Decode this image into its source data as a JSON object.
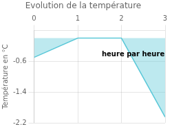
{
  "chart_data": {
    "type": "area",
    "title": "Evolution de la température",
    "ylabel": "Température en °C",
    "x": [
      0,
      1,
      2,
      3
    ],
    "values": [
      -0.5,
      0.0,
      0.0,
      -2.05
    ],
    "color": "#5bc8d8",
    "xlim": [
      0,
      3
    ],
    "ylim": [
      -2.2,
      0.2
    ],
    "xticks": [
      0,
      1,
      2,
      3
    ],
    "yticks": [
      -0.6,
      -1.4,
      -2.2
    ],
    "grid": true,
    "annotations": [
      {
        "text": "heure par heure",
        "x": 1.55,
        "y": -0.52
      }
    ]
  }
}
